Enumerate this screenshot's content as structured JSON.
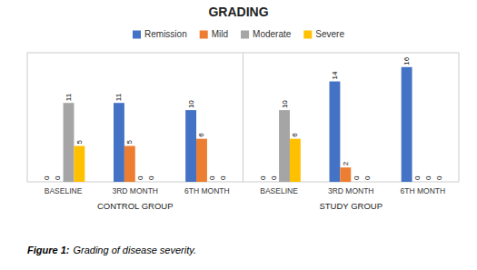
{
  "chart_data": {
    "type": "bar",
    "title": "GRADING",
    "categories": [
      "BASELINE",
      "3RD MONTH",
      "6TH MONTH",
      "BASELINE",
      "3RD MONTH",
      "6TH MONTH"
    ],
    "annotations": [
      "CONTROL GROUP",
      "STUDY GROUP"
    ],
    "caption": {
      "label": "Figure 1:",
      "text": "Grading of disease severity."
    },
    "series": [
      {
        "name": "Remission",
        "color": "#4472C4",
        "values": [
          0,
          11,
          10,
          0,
          14,
          16
        ]
      },
      {
        "name": "Mild",
        "color": "#ED7D31",
        "values": [
          0,
          5,
          6,
          0,
          2,
          0
        ]
      },
      {
        "name": "Moderate",
        "color": "#A5A5A5",
        "values": [
          11,
          0,
          0,
          10,
          0,
          0
        ]
      },
      {
        "name": "Severe",
        "color": "#FFC000",
        "values": [
          5,
          0,
          0,
          6,
          0,
          0
        ]
      }
    ],
    "ylim": [
      0,
      18
    ],
    "legend": "top",
    "grid": false,
    "data_labels": true,
    "tick_labels": "x"
  }
}
